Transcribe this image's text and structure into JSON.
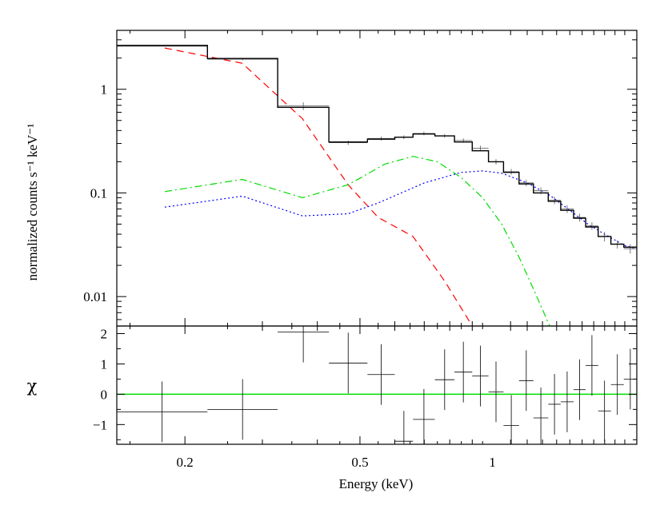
{
  "chart_data": [
    {
      "type": "line",
      "panel": "spectrum",
      "xscale": "log",
      "yscale": "log",
      "xlim": [
        0.14,
        2.13
      ],
      "ylim": [
        0.0052,
        3.7
      ],
      "ylabel": "normalized counts s⁻¹ keV⁻¹",
      "yticks": [
        {
          "value": 0.01,
          "label": "0.01"
        },
        {
          "value": 0.1,
          "label": "0.1"
        },
        {
          "value": 1,
          "label": "1"
        }
      ],
      "data": [
        {
          "x_lo": 0.14,
          "x_hi": 0.225,
          "y": 2.6,
          "err": 0.0
        },
        {
          "x_lo": 0.225,
          "x_hi": 0.325,
          "y": 1.95,
          "err": 0.05
        },
        {
          "x_lo": 0.325,
          "x_hi": 0.425,
          "y": 0.69,
          "err": 0.06
        },
        {
          "x_lo": 0.425,
          "x_hi": 0.52,
          "y": 0.305,
          "err": 0.015
        },
        {
          "x_lo": 0.52,
          "x_hi": 0.6,
          "y": 0.335,
          "err": 0.015
        },
        {
          "x_lo": 0.6,
          "x_hi": 0.66,
          "y": 0.345,
          "err": 0.015
        },
        {
          "x_lo": 0.66,
          "x_hi": 0.74,
          "y": 0.375,
          "err": 0.015
        },
        {
          "x_lo": 0.74,
          "x_hi": 0.82,
          "y": 0.355,
          "err": 0.015
        },
        {
          "x_lo": 0.82,
          "x_hi": 0.9,
          "y": 0.32,
          "err": 0.015
        },
        {
          "x_lo": 0.9,
          "x_hi": 0.98,
          "y": 0.27,
          "err": 0.015
        },
        {
          "x_lo": 0.98,
          "x_hi": 1.06,
          "y": 0.2,
          "err": 0.012
        },
        {
          "x_lo": 1.06,
          "x_hi": 1.15,
          "y": 0.16,
          "err": 0.01
        },
        {
          "x_lo": 1.15,
          "x_hi": 1.24,
          "y": 0.125,
          "err": 0.009
        },
        {
          "x_lo": 1.24,
          "x_hi": 1.34,
          "y": 0.105,
          "err": 0.008
        },
        {
          "x_lo": 1.34,
          "x_hi": 1.43,
          "y": 0.085,
          "err": 0.007
        },
        {
          "x_lo": 1.43,
          "x_hi": 1.53,
          "y": 0.07,
          "err": 0.006
        },
        {
          "x_lo": 1.53,
          "x_hi": 1.63,
          "y": 0.058,
          "err": 0.005
        },
        {
          "x_lo": 1.63,
          "x_hi": 1.74,
          "y": 0.048,
          "err": 0.004
        },
        {
          "x_lo": 1.74,
          "x_hi": 1.86,
          "y": 0.038,
          "err": 0.004
        },
        {
          "x_lo": 1.86,
          "x_hi": 1.99,
          "y": 0.032,
          "err": 0.003
        },
        {
          "x_lo": 1.99,
          "x_hi": 2.13,
          "y": 0.029,
          "err": 0.003
        }
      ],
      "total_model": [
        {
          "x_lo": 0.14,
          "x_hi": 0.225,
          "y": 2.65
        },
        {
          "x_lo": 0.225,
          "x_hi": 0.325,
          "y": 1.98
        },
        {
          "x_lo": 0.325,
          "x_hi": 0.425,
          "y": 0.67
        },
        {
          "x_lo": 0.425,
          "x_hi": 0.52,
          "y": 0.31
        },
        {
          "x_lo": 0.52,
          "x_hi": 0.6,
          "y": 0.33
        },
        {
          "x_lo": 0.6,
          "x_hi": 0.66,
          "y": 0.345
        },
        {
          "x_lo": 0.66,
          "x_hi": 0.74,
          "y": 0.37
        },
        {
          "x_lo": 0.74,
          "x_hi": 0.82,
          "y": 0.355
        },
        {
          "x_lo": 0.82,
          "x_hi": 0.9,
          "y": 0.31
        },
        {
          "x_lo": 0.9,
          "x_hi": 0.98,
          "y": 0.255
        },
        {
          "x_lo": 0.98,
          "x_hi": 1.06,
          "y": 0.2
        },
        {
          "x_lo": 1.06,
          "x_hi": 1.15,
          "y": 0.158
        },
        {
          "x_lo": 1.15,
          "x_hi": 1.24,
          "y": 0.122
        },
        {
          "x_lo": 1.24,
          "x_hi": 1.34,
          "y": 0.1
        },
        {
          "x_lo": 1.34,
          "x_hi": 1.43,
          "y": 0.083
        },
        {
          "x_lo": 1.43,
          "x_hi": 1.53,
          "y": 0.068
        },
        {
          "x_lo": 1.53,
          "x_hi": 1.63,
          "y": 0.057
        },
        {
          "x_lo": 1.63,
          "x_hi": 1.74,
          "y": 0.047
        },
        {
          "x_lo": 1.74,
          "x_hi": 1.86,
          "y": 0.038
        },
        {
          "x_lo": 1.86,
          "x_hi": 1.99,
          "y": 0.032
        },
        {
          "x_lo": 1.99,
          "x_hi": 2.13,
          "y": 0.03
        }
      ],
      "components": [
        {
          "style": "dashed",
          "color": "#ff0000",
          "points": [
            [
              0.18,
              2.5
            ],
            [
              0.27,
              1.78
            ],
            [
              0.37,
              0.52
            ],
            [
              0.47,
              0.12
            ],
            [
              0.55,
              0.058
            ],
            [
              0.66,
              0.038
            ],
            [
              0.78,
              0.014
            ],
            [
              0.9,
              0.0052
            ]
          ]
        },
        {
          "style": "dash-dot",
          "color": "#00dd00",
          "points": [
            [
              0.18,
              0.103
            ],
            [
              0.27,
              0.135
            ],
            [
              0.37,
              0.09
            ],
            [
              0.47,
              0.12
            ],
            [
              0.57,
              0.19
            ],
            [
              0.66,
              0.225
            ],
            [
              0.75,
              0.2
            ],
            [
              0.85,
              0.14
            ],
            [
              0.95,
              0.09
            ],
            [
              1.05,
              0.05
            ],
            [
              1.15,
              0.024
            ],
            [
              1.25,
              0.011
            ],
            [
              1.35,
              0.0052
            ]
          ]
        },
        {
          "style": "dotted",
          "color": "#0000ff",
          "points": [
            [
              0.18,
              0.073
            ],
            [
              0.27,
              0.093
            ],
            [
              0.37,
              0.06
            ],
            [
              0.47,
              0.063
            ],
            [
              0.55,
              0.08
            ],
            [
              0.7,
              0.125
            ],
            [
              0.85,
              0.158
            ],
            [
              0.95,
              0.163
            ],
            [
              1.05,
              0.155
            ],
            [
              1.2,
              0.125
            ],
            [
              1.35,
              0.095
            ],
            [
              1.5,
              0.068
            ],
            [
              1.65,
              0.05
            ],
            [
              1.8,
              0.04
            ],
            [
              2.0,
              0.031
            ],
            [
              2.13,
              0.029
            ]
          ]
        }
      ]
    },
    {
      "type": "scatter",
      "panel": "residuals",
      "xscale": "log",
      "xlim": [
        0.14,
        2.13
      ],
      "ylim": [
        -1.65,
        2.25
      ],
      "xlabel": "Energy (keV)",
      "ylabel": "χ",
      "xticks": [
        {
          "value": 0.2,
          "label": "0.2"
        },
        {
          "value": 0.5,
          "label": "0.5"
        },
        {
          "value": 1,
          "label": "1"
        }
      ],
      "yticks": [
        {
          "value": -1,
          "label": "−1"
        },
        {
          "value": 0,
          "label": "0"
        },
        {
          "value": 1,
          "label": "1"
        },
        {
          "value": 2,
          "label": "2"
        }
      ],
      "zero_line_color": "#00dd00",
      "points": [
        {
          "x_lo": 0.14,
          "x_hi": 0.225,
          "y": -0.58,
          "err": 1.0
        },
        {
          "x_lo": 0.225,
          "x_hi": 0.325,
          "y": -0.5,
          "err": 1.0
        },
        {
          "x_lo": 0.325,
          "x_hi": 0.425,
          "y": 2.05,
          "err": 1.0
        },
        {
          "x_lo": 0.425,
          "x_hi": 0.52,
          "y": 1.03,
          "err": 1.0
        },
        {
          "x_lo": 0.52,
          "x_hi": 0.6,
          "y": 0.65,
          "err": 1.0
        },
        {
          "x_lo": 0.6,
          "x_hi": 0.66,
          "y": -1.55,
          "err": 1.0
        },
        {
          "x_lo": 0.66,
          "x_hi": 0.74,
          "y": -0.83,
          "err": 1.0
        },
        {
          "x_lo": 0.74,
          "x_hi": 0.82,
          "y": 0.48,
          "err": 1.0
        },
        {
          "x_lo": 0.82,
          "x_hi": 0.9,
          "y": 0.73,
          "err": 1.0
        },
        {
          "x_lo": 0.9,
          "x_hi": 0.98,
          "y": 0.6,
          "err": 1.0
        },
        {
          "x_lo": 0.98,
          "x_hi": 1.06,
          "y": 0.08,
          "err": 1.0
        },
        {
          "x_lo": 1.06,
          "x_hi": 1.15,
          "y": -1.03,
          "err": 1.0
        },
        {
          "x_lo": 1.15,
          "x_hi": 1.24,
          "y": 0.45,
          "err": 1.0
        },
        {
          "x_lo": 1.24,
          "x_hi": 1.34,
          "y": -0.78,
          "err": 1.0
        },
        {
          "x_lo": 1.34,
          "x_hi": 1.43,
          "y": -0.33,
          "err": 1.0
        },
        {
          "x_lo": 1.43,
          "x_hi": 1.53,
          "y": -0.25,
          "err": 1.0
        },
        {
          "x_lo": 1.53,
          "x_hi": 1.63,
          "y": 0.15,
          "err": 1.0
        },
        {
          "x_lo": 1.63,
          "x_hi": 1.74,
          "y": 0.95,
          "err": 1.0
        },
        {
          "x_lo": 1.74,
          "x_hi": 1.86,
          "y": -0.55,
          "err": 1.0
        },
        {
          "x_lo": 1.86,
          "x_hi": 1.99,
          "y": 0.32,
          "err": 1.0
        },
        {
          "x_lo": 1.99,
          "x_hi": 2.13,
          "y": 0.5,
          "err": 1.0
        }
      ]
    }
  ]
}
